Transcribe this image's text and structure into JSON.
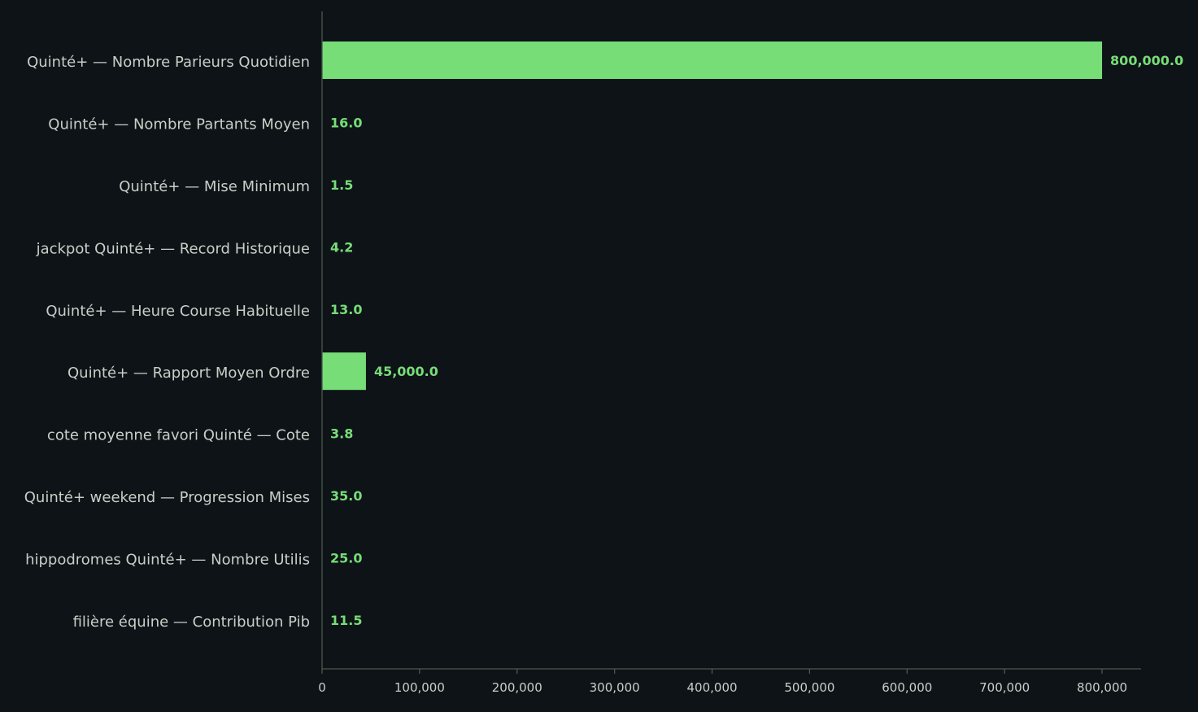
{
  "chart_data": {
    "type": "bar",
    "orientation": "horizontal",
    "title": "",
    "xlabel": "",
    "ylabel": "",
    "categories": [
      "Quinté+ — Nombre Parieurs Quotidien",
      "Quinté+ — Nombre Partants Moyen",
      "Quinté+ — Mise Minimum",
      "jackpot Quinté+ — Record Historique",
      "Quinté+ — Heure Course Habituelle",
      "Quinté+ — Rapport Moyen Ordre",
      "cote moyenne favori Quinté — Cote",
      "Quinté+ weekend — Progression Mises",
      "hippodromes Quinté+ — Nombre Utilis",
      "filière équine — Contribution Pib"
    ],
    "values": [
      800000.0,
      16.0,
      1.5,
      4.2,
      13.0,
      45000.0,
      3.8,
      35.0,
      25.0,
      11.5
    ],
    "value_labels": [
      "800,000.0",
      "16.0",
      "1.5",
      "4.2",
      "13.0",
      "45,000.0",
      "3.8",
      "35.0",
      "25.0",
      "11.5"
    ],
    "xlim": [
      0,
      840000
    ],
    "x_ticks": [
      0,
      100000,
      200000,
      300000,
      400000,
      500000,
      600000,
      700000,
      800000
    ],
    "x_tick_labels": [
      "0",
      "100,000",
      "200,000",
      "300,000",
      "400,000",
      "500,000",
      "600,000",
      "700,000",
      "800,000"
    ],
    "grid": false,
    "legend": "none",
    "colors": {
      "background": "#0e1318",
      "bar": "#77dd77",
      "value_text": "#77dd77",
      "axis": "#4a5a4a",
      "text": "#c8cfc6"
    }
  }
}
